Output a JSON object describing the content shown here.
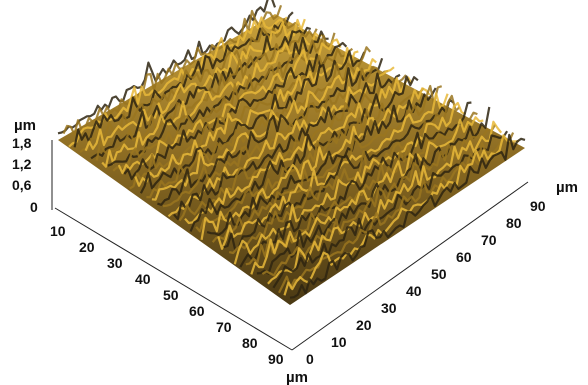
{
  "chart_data": {
    "type": "surface",
    "z_axis": {
      "label": "µm",
      "ticks": [
        "0",
        "0,6",
        "1,2",
        "1,8"
      ],
      "range": [
        0,
        1.8
      ]
    },
    "x_axis": {
      "label": "µm",
      "ticks": [
        "10",
        "20",
        "30",
        "40",
        "50",
        "60",
        "70",
        "80",
        "90"
      ],
      "range": [
        0,
        90
      ]
    },
    "y_axis": {
      "label": "µm",
      "ticks": [
        "0",
        "10",
        "20",
        "30",
        "40",
        "50",
        "60",
        "70",
        "80",
        "90"
      ],
      "range": [
        0,
        90
      ]
    },
    "colors": {
      "high": "#e8b83a",
      "mid": "#9a7620",
      "low": "#2e2410"
    },
    "grid": false
  }
}
